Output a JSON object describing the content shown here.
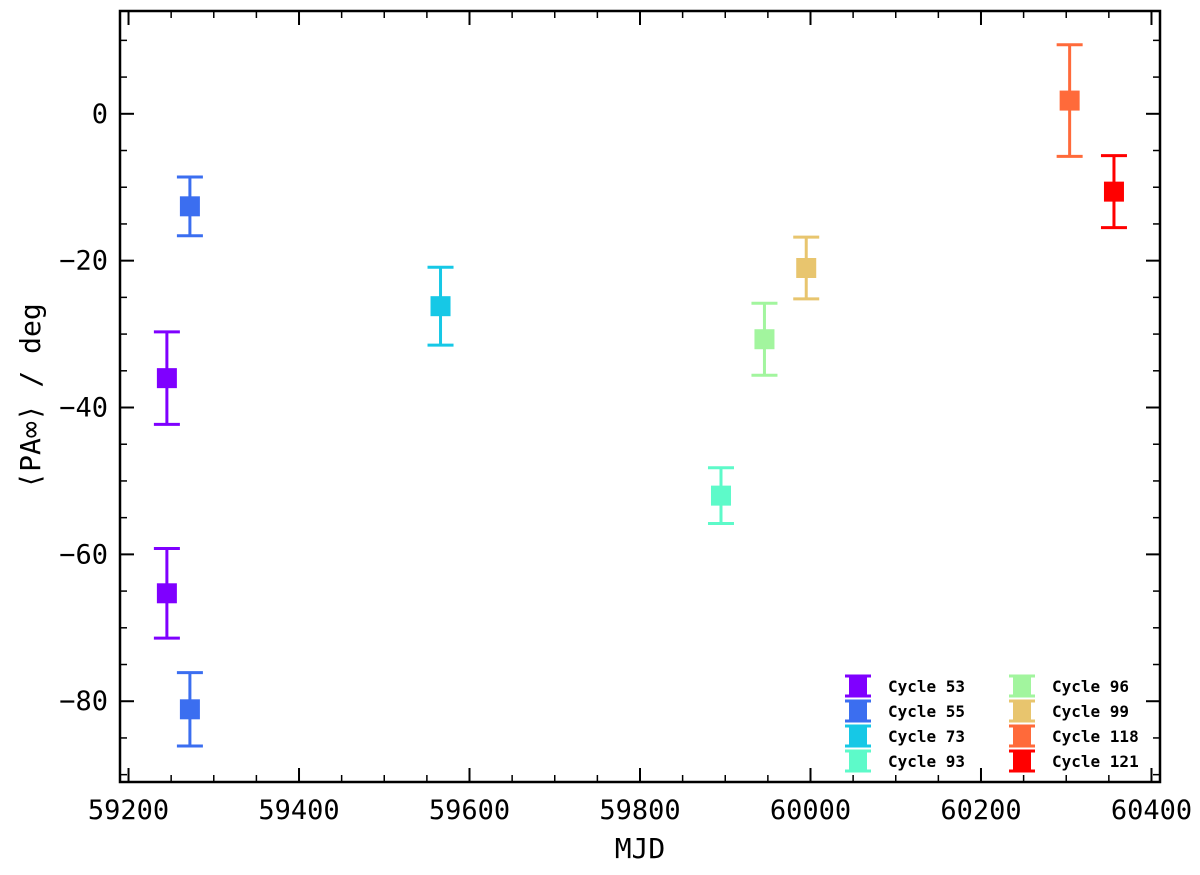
{
  "chart_data": {
    "type": "scatter",
    "xlabel": "MJD",
    "ylabel": "⟨PA∞⟩ / deg",
    "xlim": [
      59190,
      60410
    ],
    "ylim": [
      -91,
      14
    ],
    "x_ticks": [
      59200,
      59400,
      59600,
      59800,
      60000,
      60200,
      60400
    ],
    "y_ticks": [
      0,
      -20,
      -40,
      -60,
      -80
    ],
    "x_minor_step": 50,
    "y_minor_step": 5,
    "grid": false,
    "legend_placement": "bottom-right",
    "legend_columns": 2,
    "marker": "square-with-errorbars",
    "series": [
      {
        "name": "Cycle 53",
        "color": "#7f00ff",
        "points": [
          {
            "x": 59245,
            "y": -36.0,
            "err": 6.3
          },
          {
            "x": 59245,
            "y": -65.3,
            "err": 6.1
          }
        ]
      },
      {
        "name": "Cycle 55",
        "color": "#3b6ef0",
        "points": [
          {
            "x": 59272,
            "y": -12.6,
            "err": 4.0
          },
          {
            "x": 59272,
            "y": -81.1,
            "err": 5.0
          }
        ]
      },
      {
        "name": "Cycle 73",
        "color": "#16c8e6",
        "points": [
          {
            "x": 59566,
            "y": -26.2,
            "err": 5.3
          }
        ]
      },
      {
        "name": "Cycle 93",
        "color": "#5dfac9",
        "points": [
          {
            "x": 59895,
            "y": -52.0,
            "err": 3.8
          }
        ]
      },
      {
        "name": "Cycle 96",
        "color": "#a2f59e",
        "points": [
          {
            "x": 59946,
            "y": -30.7,
            "err": 4.9
          }
        ]
      },
      {
        "name": "Cycle 99",
        "color": "#e8c56e",
        "points": [
          {
            "x": 59995,
            "y": -21.0,
            "err": 4.2
          }
        ]
      },
      {
        "name": "Cycle 118",
        "color": "#ff6a3a",
        "points": [
          {
            "x": 60304,
            "y": 1.8,
            "err": 7.6
          }
        ]
      },
      {
        "name": "Cycle 121",
        "color": "#ff0000",
        "points": [
          {
            "x": 60356,
            "y": -10.6,
            "err": 4.9
          }
        ]
      }
    ]
  }
}
